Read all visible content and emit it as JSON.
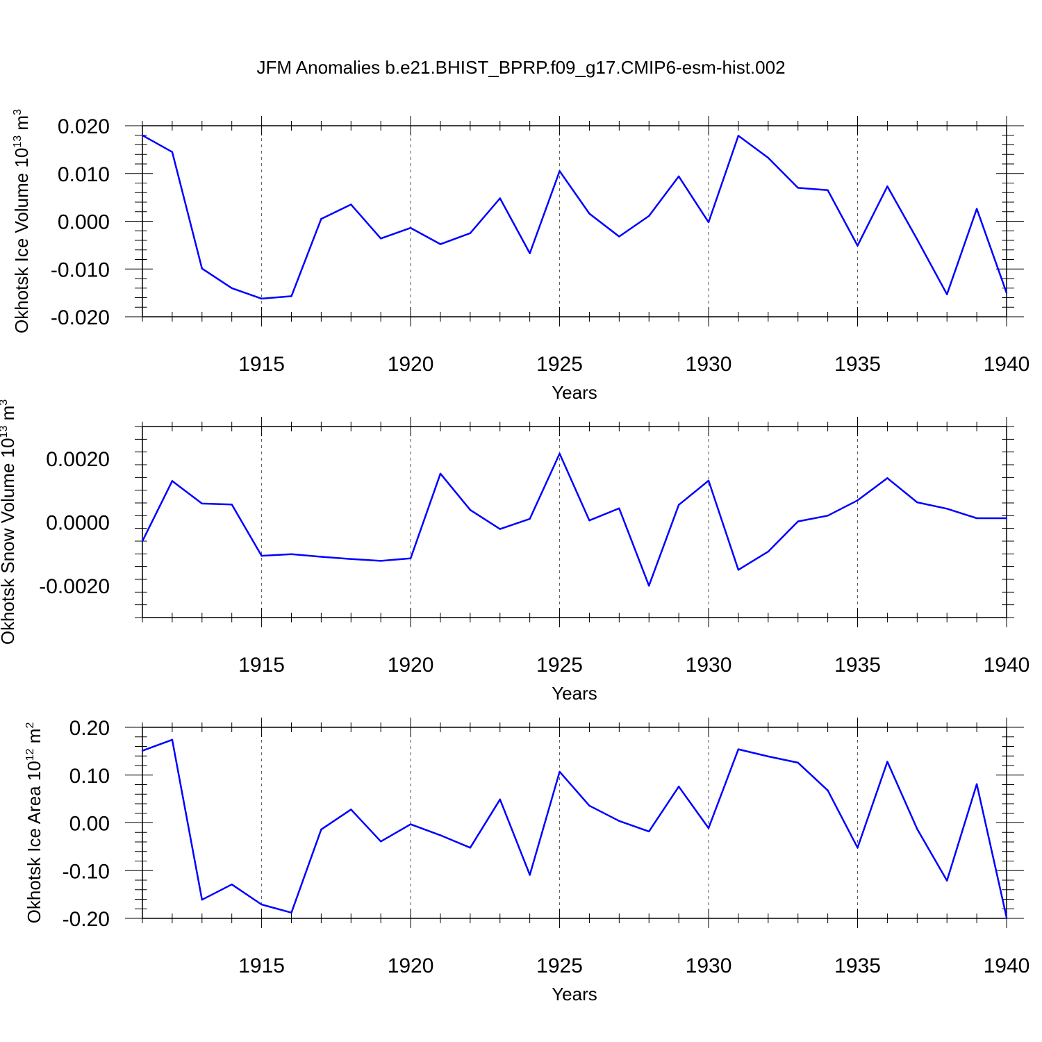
{
  "title": "JFM Anomalies b.e21.BHIST_BPRP.f09_g17.CMIP6-esm-hist.002",
  "line_color": "#0000ff",
  "chart_data": [
    {
      "type": "line",
      "ylabel": "Okhotsk Ice Volume 10",
      "ylabel_exp": "13",
      "ylabel_unit": " m",
      "ylabel_unit_exp": "3",
      "xlabel": "Years",
      "xlim": [
        1911,
        1940
      ],
      "ylim": [
        -0.02,
        0.02
      ],
      "xticks": [
        "1915",
        "1920",
        "1925",
        "1930",
        "1935",
        "1940"
      ],
      "yticks": [
        "0.020",
        "0.010",
        "0.000",
        "-0.010",
        "-0.020"
      ],
      "x": [
        1911,
        1912,
        1913,
        1914,
        1915,
        1916,
        1917,
        1918,
        1919,
        1920,
        1921,
        1922,
        1923,
        1924,
        1925,
        1926,
        1927,
        1928,
        1929,
        1930,
        1931,
        1932,
        1933,
        1934,
        1935,
        1936,
        1937,
        1938,
        1939,
        1940
      ],
      "values": [
        0.018,
        0.0145,
        -0.0099,
        -0.014,
        -0.0162,
        -0.0157,
        0.0005,
        0.0035,
        -0.0036,
        -0.0014,
        -0.0048,
        -0.0025,
        0.0048,
        -0.0067,
        0.0105,
        0.0016,
        -0.0032,
        0.0011,
        0.0094,
        -0.0002,
        0.0179,
        0.0133,
        0.007,
        0.0065,
        -0.0051,
        0.0073,
        -0.0038,
        -0.0153,
        0.0026,
        -0.015
      ]
    },
    {
      "type": "line",
      "ylabel": "Okhotsk Snow Volume 10",
      "ylabel_exp": "13",
      "ylabel_unit": " m",
      "ylabel_unit_exp": "3",
      "xlabel": "Years",
      "xlim": [
        1911,
        1940
      ],
      "ylim": [
        -0.003,
        0.003
      ],
      "xticks": [
        "1915",
        "1920",
        "1925",
        "1930",
        "1935",
        "1940"
      ],
      "yticks": [
        "0.0020",
        "0.0000",
        "-0.0020"
      ],
      "x": [
        1911,
        1912,
        1913,
        1914,
        1915,
        1916,
        1917,
        1918,
        1919,
        1920,
        1921,
        1922,
        1923,
        1924,
        1925,
        1926,
        1927,
        1928,
        1929,
        1930,
        1931,
        1932,
        1933,
        1934,
        1935,
        1936,
        1937,
        1938,
        1939,
        1940
      ],
      "values": [
        -0.0006,
        0.00129,
        0.00058,
        0.00055,
        -0.00106,
        -0.00101,
        -0.00109,
        -0.00116,
        -0.00122,
        -0.00114,
        0.00152,
        0.00038,
        -0.00022,
        0.0001,
        0.00215,
        5e-05,
        0.00043,
        -0.002,
        0.00054,
        0.0013,
        -0.0015,
        -0.00093,
        2e-05,
        0.0002,
        0.00068,
        0.00138,
        0.00062,
        0.00042,
        0.00012,
        0.00012
      ]
    },
    {
      "type": "line",
      "ylabel": "Okhotsk Ice Area 10",
      "ylabel_exp": "12",
      "ylabel_unit": " m",
      "ylabel_unit_exp": "2",
      "xlabel": "Years",
      "xlim": [
        1911,
        1940
      ],
      "ylim": [
        -0.2,
        0.2
      ],
      "xticks": [
        "1915",
        "1920",
        "1925",
        "1930",
        "1935",
        "1940"
      ],
      "yticks": [
        "0.20",
        "0.10",
        "0.00",
        "-0.10",
        "-0.20"
      ],
      "x": [
        1911,
        1912,
        1913,
        1914,
        1915,
        1916,
        1917,
        1918,
        1919,
        1920,
        1921,
        1922,
        1923,
        1924,
        1925,
        1926,
        1927,
        1928,
        1929,
        1930,
        1931,
        1932,
        1933,
        1934,
        1935,
        1936,
        1937,
        1938,
        1939,
        1940
      ],
      "values": [
        0.151,
        0.174,
        -0.161,
        -0.129,
        -0.171,
        -0.188,
        -0.014,
        0.028,
        -0.039,
        -0.003,
        -0.026,
        -0.052,
        0.049,
        -0.109,
        0.107,
        0.036,
        0.004,
        -0.018,
        0.076,
        -0.011,
        0.154,
        0.139,
        0.126,
        0.068,
        -0.052,
        0.128,
        -0.013,
        -0.121,
        0.081,
        -0.198
      ]
    }
  ]
}
